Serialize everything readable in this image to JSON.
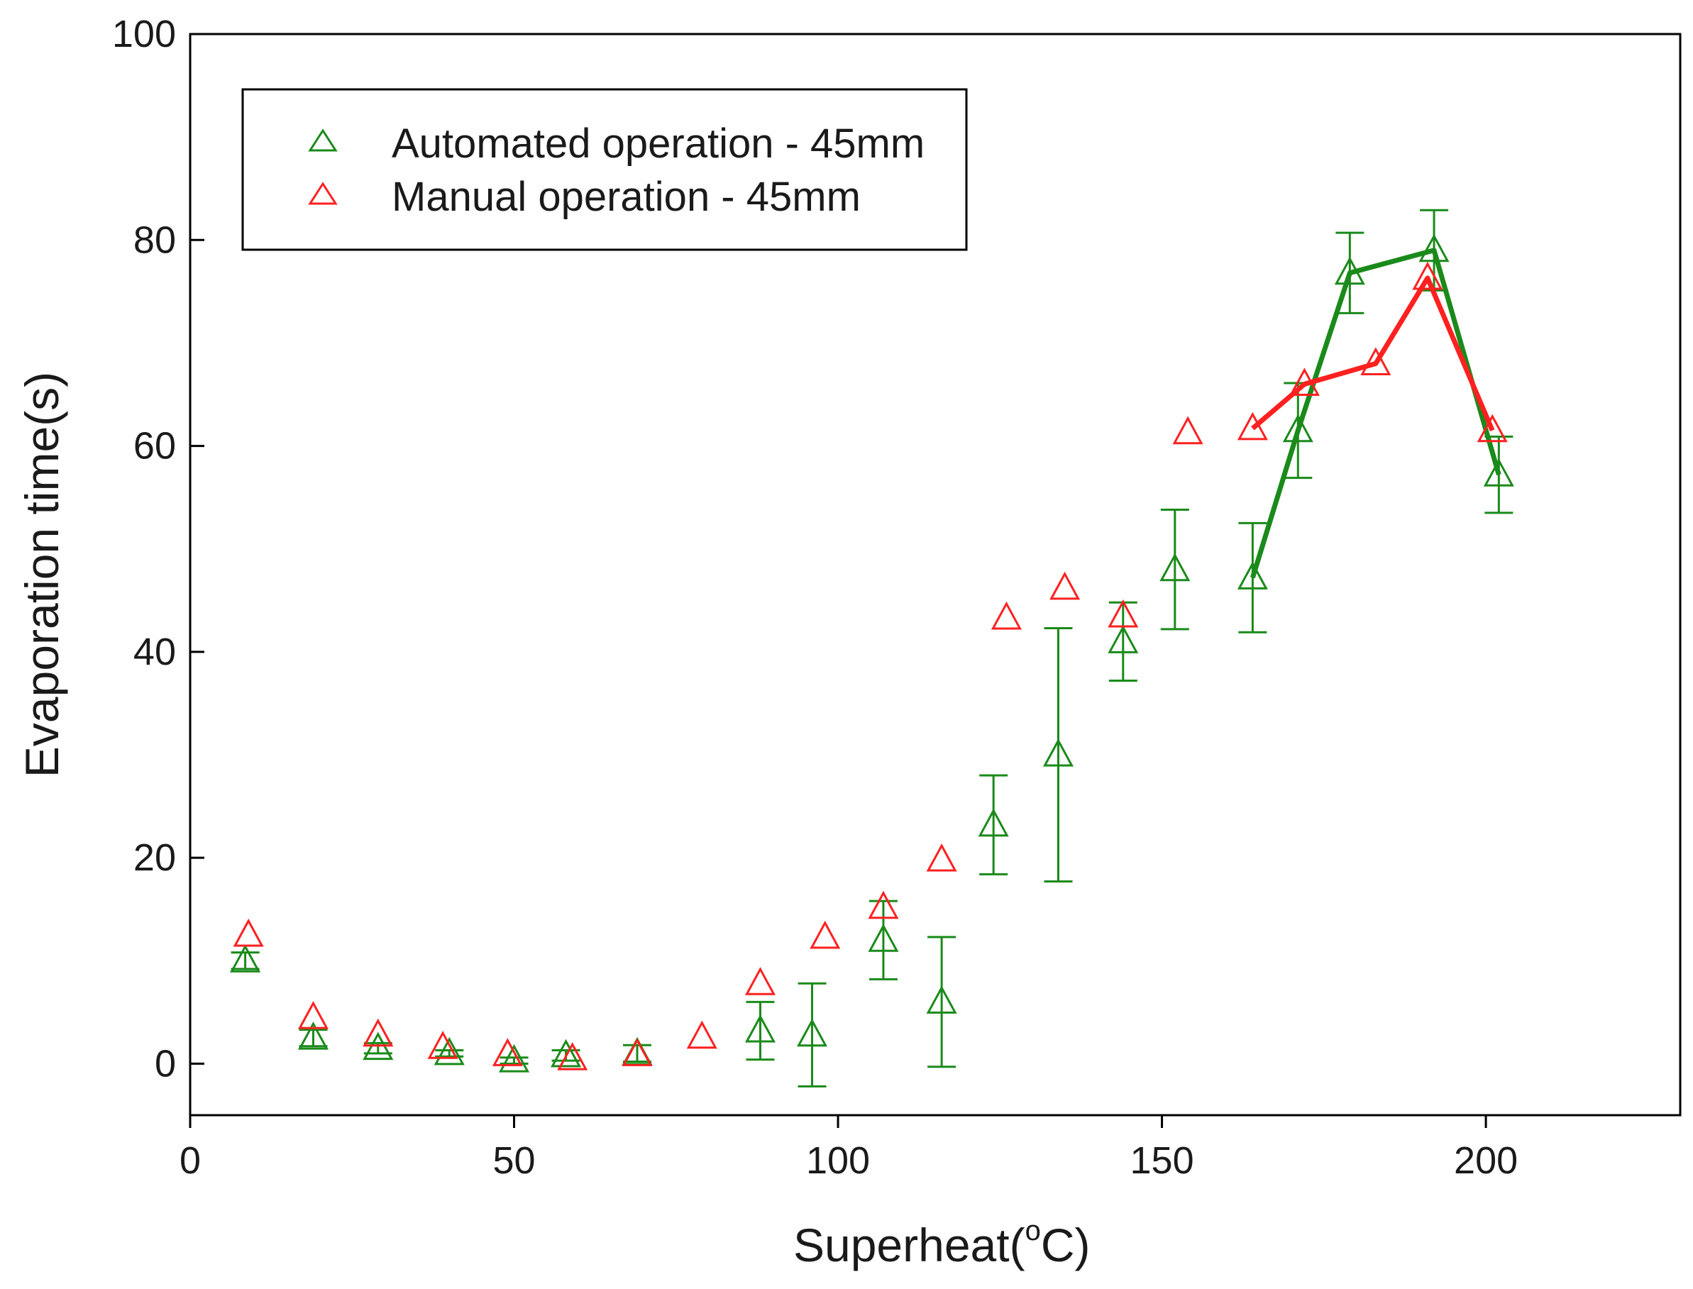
{
  "chart_data": {
    "type": "scatter",
    "xlabel_main": "Superheat(",
    "xlabel_sup": "o",
    "xlabel_tail": "C)",
    "ylabel": "Evaporation time(s)",
    "xlim": [
      0,
      230
    ],
    "ylim": [
      -5,
      100
    ],
    "xticks": [
      0,
      50,
      100,
      150,
      200
    ],
    "yticks": [
      0,
      20,
      40,
      60,
      80,
      100
    ],
    "legend_position": "top-left",
    "series": [
      {
        "name": "Automated operation - 45mm",
        "color": "#1a8a1a",
        "points": [
          {
            "x": 8.5,
            "y": 10.0,
            "err": 0.8
          },
          {
            "x": 19,
            "y": 2.5,
            "err": 0.8
          },
          {
            "x": 29,
            "y": 1.5,
            "err": 0.5
          },
          {
            "x": 40,
            "y": 1.0,
            "err": 0.3
          },
          {
            "x": 50,
            "y": 0.3,
            "err": 0.3
          },
          {
            "x": 58,
            "y": 0.8,
            "err": 0.5
          },
          {
            "x": 69,
            "y": 1.0,
            "err": 0.8
          },
          {
            "x": 88,
            "y": 3.2,
            "err": 2.8
          },
          {
            "x": 96,
            "y": 2.8,
            "err": 5.0
          },
          {
            "x": 107,
            "y": 12.0,
            "err": 3.8
          },
          {
            "x": 116,
            "y": 6.0,
            "err": 6.3
          },
          {
            "x": 124,
            "y": 23.2,
            "err": 4.8
          },
          {
            "x": 134,
            "y": 30.0,
            "err": 12.3
          },
          {
            "x": 144,
            "y": 41.0,
            "err": 3.8
          },
          {
            "x": 152,
            "y": 48.0,
            "err": 5.8
          },
          {
            "x": 164,
            "y": 47.2,
            "err": 5.3
          },
          {
            "x": 171,
            "y": 61.5,
            "err": 4.6
          },
          {
            "x": 179,
            "y": 76.8,
            "err": 3.9
          },
          {
            "x": 192,
            "y": 79.0,
            "err": 3.9
          },
          {
            "x": 202,
            "y": 57.2,
            "err": 3.7
          }
        ],
        "line_from_index": 15
      },
      {
        "name": "Manual operation - 45mm",
        "color": "#ff2020",
        "points": [
          {
            "x": 9,
            "y": 12.5
          },
          {
            "x": 19,
            "y": 4.5
          },
          {
            "x": 29,
            "y": 2.8
          },
          {
            "x": 39,
            "y": 1.6
          },
          {
            "x": 49,
            "y": 0.9
          },
          {
            "x": 59,
            "y": 0.5
          },
          {
            "x": 69,
            "y": 0.9
          },
          {
            "x": 79,
            "y": 2.6
          },
          {
            "x": 88,
            "y": 7.8
          },
          {
            "x": 98,
            "y": 12.3
          },
          {
            "x": 107,
            "y": 15.2
          },
          {
            "x": 116,
            "y": 19.8
          },
          {
            "x": 126,
            "y": 43.3
          },
          {
            "x": 135,
            "y": 46.2
          },
          {
            "x": 144,
            "y": 43.5
          },
          {
            "x": 154,
            "y": 61.3
          },
          {
            "x": 164,
            "y": 61.7
          },
          {
            "x": 172,
            "y": 66.0
          },
          {
            "x": 183,
            "y": 68.0
          },
          {
            "x": 191,
            "y": 76.3
          },
          {
            "x": 201,
            "y": 61.5
          }
        ],
        "line_from_index": 16
      }
    ]
  }
}
